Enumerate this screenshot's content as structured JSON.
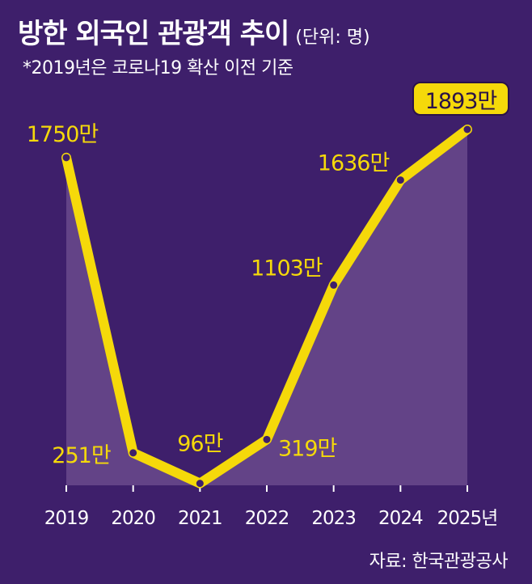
{
  "header": {
    "title": "방한 외국인 관광객 추이",
    "unit": "(단위: 명)",
    "note": "*2019년은 코로나19 확산 이전 기준"
  },
  "footer": {
    "source": "자료: 한국관광공사"
  },
  "colors": {
    "background": "#3e1f6b",
    "line": "#f5d90a",
    "area": "#6a4a8c",
    "text": "#ffffff",
    "highlight_box": "#f5d90a"
  },
  "chart_data": {
    "type": "area",
    "x": [
      "2019",
      "2020",
      "2021",
      "2022",
      "2023",
      "2024",
      "2025년"
    ],
    "series": [
      {
        "values": [
          17500000,
          2510000,
          960000,
          3190000,
          11030000,
          16360000,
          18930000
        ]
      }
    ],
    "data_labels": [
      "1750만",
      "251만",
      "96만",
      "319만",
      "1103만",
      "1636만",
      "1893만"
    ],
    "highlight_index": 6,
    "ylim": [
      0,
      19000000
    ],
    "grid": false,
    "legend": "none"
  }
}
